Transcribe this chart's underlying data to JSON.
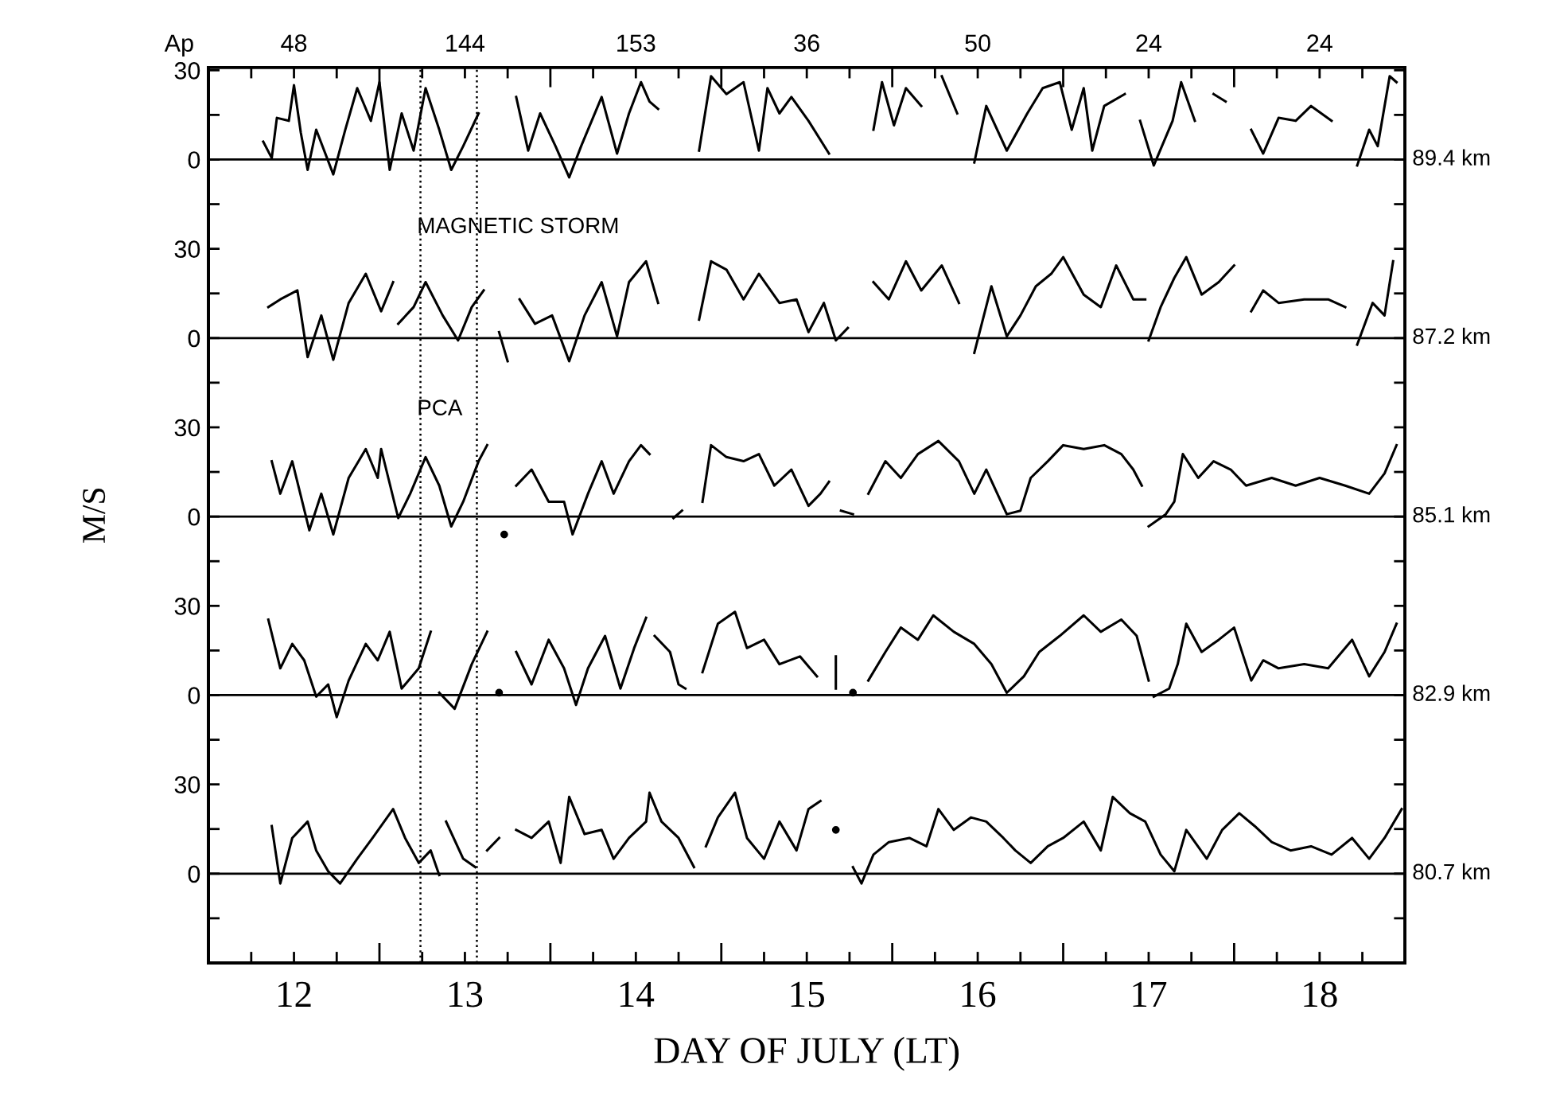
{
  "chart_data": [
    {
      "type": "line",
      "xlim": [
        12,
        19
      ],
      "ylim": [
        -270,
        31
      ],
      "tick_labels": "y",
      "line_style": "solid",
      "marker": "none",
      "yticks": [
        {
          "value": 30,
          "label": "30"
        },
        {
          "value": 15,
          "label": null
        },
        {
          "value": 0,
          "label": "0"
        },
        {
          "value": -15,
          "label": null
        }
      ],
      "series": [
        {
          "color": "#000000",
          "x": [
            12.32,
            12.37,
            12.4,
            12.47,
            12.5,
            12.54,
            12.58,
            12.63,
            12.73,
            12.8,
            12.87,
            12.95,
            13.0,
            13.06,
            13.13,
            13.2,
            13.27,
            13.35,
            13.42,
            13.49,
            13.58,
            13.7,
            13.8,
            13.87,
            13.94,
            14.03,
            14.11,
            14.18,
            14.3,
            14.39,
            14.46,
            14.53,
            14.58,
            14.63,
            14.75,
            14.87,
            14.94,
            15.03,
            15.13,
            15.22,
            15.27,
            15.34,
            15.41,
            15.51,
            15.63,
            15.75,
            15.89,
            15.94,
            16.01,
            16.08,
            16.17,
            16.23,
            16.29,
            16.38,
            16.43,
            16.48,
            16.55,
            16.67,
            16.79,
            16.88,
            16.98,
            17.05,
            17.12,
            17.17,
            17.24,
            17.36,
            17.4,
            17.45,
            17.53,
            17.64,
            17.69,
            17.77,
            17.82,
            17.88,
            17.95,
            18.02,
            18.1,
            18.17,
            18.26,
            18.36,
            18.45,
            18.57,
            18.65,
            18.72,
            18.79,
            18.84,
            18.91,
            18.95
          ],
          "values": [
            6,
            0.5,
            14,
            13,
            25,
            9,
            -3.5,
            10,
            -5,
            10,
            24,
            13,
            26,
            -3.5,
            15.5,
            3,
            24,
            10,
            -3.5,
            4.5,
            15.5,
            null,
            21,
            3,
            15.5,
            4.5,
            -6,
            4.5,
            21,
            2,
            15.5,
            26,
            19.5,
            17,
            null,
            3,
            28,
            22,
            26,
            3,
            24,
            15.5,
            21,
            13,
            2,
            null,
            10,
            26,
            11.5,
            24,
            18,
            null,
            28,
            15.5,
            null,
            -1,
            18,
            3,
            15.5,
            24,
            26,
            10,
            24,
            3,
            18,
            22,
            null,
            13,
            -2,
            13,
            26,
            13,
            null,
            22,
            19.5,
            null,
            10,
            2,
            14,
            13,
            18,
            13,
            null,
            -2,
            10,
            4.5,
            28,
            26
          ]
        }
      ],
      "ref_lines": [
        {
          "axis": "y",
          "value": 0,
          "label": "89.4 km",
          "color": "#000000",
          "line_style": "solid"
        },
        {
          "axis": "x",
          "value": 13.24,
          "color": "#000000",
          "line_style": "dotted"
        },
        {
          "axis": "x",
          "value": 13.57,
          "color": "#000000",
          "line_style": "dotted"
        }
      ],
      "annotations": [
        "Ap",
        "48",
        "144",
        "153",
        "36",
        "50",
        "24",
        "24",
        {
          "text": "MAGNETIC STORM",
          "x": 13.22,
          "y": -22.8
        }
      ]
    },
    {
      "type": "line",
      "xlim": [
        12,
        19
      ],
      "ylim": [
        -210,
        91
      ],
      "tick_labels": "y",
      "line_style": "solid",
      "marker": "none",
      "yticks": [
        {
          "value": 30,
          "label": "30"
        },
        {
          "value": 15,
          "label": null
        },
        {
          "value": 0,
          "label": "0"
        },
        {
          "value": -15,
          "label": null
        }
      ],
      "series": [
        {
          "color": "#000000",
          "x": [
            12.35,
            12.42,
            12.52,
            12.58,
            12.66,
            12.73,
            12.82,
            12.92,
            13.01,
            13.08,
            13.1,
            13.11,
            13.2,
            13.27,
            13.37,
            13.46,
            13.54,
            13.61,
            13.65,
            13.7,
            13.75,
            13.78,
            13.82,
            13.91,
            14.01,
            14.11,
            14.2,
            14.3,
            14.39,
            14.46,
            14.56,
            14.63,
            14.75,
            14.87,
            14.94,
            15.03,
            15.13,
            15.22,
            15.34,
            15.44,
            15.51,
            15.6,
            15.67,
            15.74,
            15.8,
            15.89,
            15.98,
            16.08,
            16.17,
            16.29,
            16.39,
            16.44,
            16.48,
            16.58,
            16.67,
            16.75,
            16.84,
            16.93,
            17.0,
            17.12,
            17.22,
            17.31,
            17.41,
            17.48,
            17.49,
            17.5,
            17.57,
            17.65,
            17.72,
            17.81,
            17.91,
            18.0,
            18.05,
            18.1,
            18.17,
            18.26,
            18.41,
            18.55,
            18.65,
            18.69,
            18.72,
            18.81,
            18.88,
            18.93
          ],
          "values": [
            10.4,
            13,
            16,
            -6.4,
            7.6,
            -7.3,
            11.8,
            21.6,
            9,
            18.8,
            null,
            4.8,
            10.4,
            18.8,
            7.6,
            -0.8,
            10.4,
            16,
            null,
            2,
            -7.8,
            null,
            13,
            4.8,
            7.6,
            -7.8,
            7.6,
            18.8,
            0.6,
            18.8,
            25.8,
            11.8,
            null,
            6.2,
            25.8,
            23,
            13,
            21.6,
            11.8,
            13,
            2,
            11.8,
            -0.8,
            3.4,
            null,
            18.8,
            13,
            25.8,
            16,
            24.4,
            11.8,
            null,
            -5,
            17.4,
            0.6,
            7.6,
            17.4,
            21.6,
            27.2,
            14.6,
            10.4,
            24.4,
            13,
            13,
            null,
            -0.8,
            10.4,
            20.2,
            27.2,
            14.6,
            18.8,
            24.4,
            null,
            9,
            16,
            11.8,
            13,
            13,
            10.4,
            null,
            -2.2,
            11.8,
            7.6,
            25.8
          ]
        }
      ],
      "ref_lines": [
        {
          "axis": "y",
          "value": 0,
          "label": "87.2 km",
          "color": "#000000",
          "line_style": "solid"
        }
      ],
      "annotations": [
        {
          "text": "PCA",
          "x": 13.22,
          "y": -24
        }
      ]
    },
    {
      "type": "line",
      "xlim": [
        12,
        19
      ],
      "ylim": [
        -150,
        151
      ],
      "tick_labels": "y",
      "line_style": "solid",
      "marker": "none",
      "ylabel": "M/S",
      "yticks": [
        {
          "value": 30,
          "label": "30"
        },
        {
          "value": 15,
          "label": null
        },
        {
          "value": 0,
          "label": "0"
        },
        {
          "value": -15,
          "label": null
        }
      ],
      "series": [
        {
          "color": "#000000",
          "x": [
            12.37,
            12.42,
            12.49,
            12.59,
            12.66,
            12.73,
            12.82,
            12.92,
            12.99,
            13.01,
            13.11,
            13.18,
            13.27,
            13.35,
            13.42,
            13.49,
            13.58,
            13.63,
            13.68,
            13.73,
            13.77,
            13.8,
            13.89,
            13.99,
            14.08,
            14.13,
            14.22,
            14.3,
            14.37,
            14.46,
            14.53,
            14.58,
            14.65,
            14.72,
            14.77,
            14.83,
            14.89,
            14.94,
            15.03,
            15.13,
            15.22,
            15.31,
            15.41,
            15.51,
            15.58,
            15.63,
            15.66,
            15.7,
            15.77,
            15.82,
            15.86,
            15.96,
            16.05,
            16.15,
            16.27,
            16.39,
            16.48,
            16.55,
            16.67,
            16.75,
            16.81,
            16.91,
            17.0,
            17.12,
            17.24,
            17.34,
            17.41,
            17.46,
            17.48,
            17.5,
            17.6,
            17.65,
            17.7,
            17.79,
            17.88,
            17.98,
            18.07,
            18.22,
            18.36,
            18.5,
            18.65,
            18.79,
            18.88,
            18.95
          ],
          "values": [
            18.6,
            7.7,
            18.6,
            -4.6,
            7.7,
            -6,
            13,
            22.7,
            13,
            22.7,
            -0.5,
            7.7,
            20,
            10.4,
            -3.3,
            5,
            18.6,
            24,
            null,
            -6,
            null,
            10.4,
            15.8,
            5,
            5,
            -6,
            7.7,
            18.6,
            7.7,
            18.6,
            24,
            21,
            null,
            -0.5,
            2,
            null,
            5,
            24,
            20,
            18.6,
            21,
            10.4,
            15.8,
            3.6,
            7.7,
            11.7,
            null,
            2,
            0.8,
            null,
            7.7,
            18.6,
            13,
            21,
            25.4,
            18.6,
            7.7,
            15.8,
            0.8,
            2,
            13,
            18.6,
            24,
            22.7,
            24,
            21,
            15.8,
            10.4,
            null,
            -3.3,
            0.8,
            5,
            21,
            13,
            18.6,
            15.8,
            10.4,
            13,
            10.4,
            13,
            10.4,
            7.7,
            14.5,
            24
          ]
        }
      ],
      "ref_lines": [
        {
          "axis": "y",
          "value": 0,
          "label": "85.1 km",
          "color": "#000000",
          "line_style": "solid"
        }
      ]
    },
    {
      "type": "line",
      "xlim": [
        12,
        19
      ],
      "ylim": [
        -90,
        211
      ],
      "tick_labels": "y",
      "line_style": "solid",
      "marker": "none",
      "yticks": [
        {
          "value": 30,
          "label": "30"
        },
        {
          "value": 15,
          "label": null
        },
        {
          "value": 0,
          "label": "0"
        },
        {
          "value": -15,
          "label": null
        }
      ],
      "series": [
        {
          "color": "#000000",
          "x": [
            12.35,
            12.42,
            12.49,
            12.56,
            12.63,
            12.7,
            12.75,
            12.82,
            12.92,
            12.99,
            13.06,
            13.13,
            13.23,
            13.3,
            13.33,
            13.35,
            13.44,
            13.54,
            13.63,
            13.67,
            13.7,
            13.75,
            13.8,
            13.89,
            13.99,
            14.08,
            14.15,
            14.22,
            14.32,
            14.41,
            14.49,
            14.56,
            14.59,
            14.61,
            14.7,
            14.75,
            14.79,
            14.84,
            14.89,
            14.98,
            15.08,
            15.15,
            15.25,
            15.34,
            15.46,
            15.56,
            15.62,
            15.67,
            15.67,
            15.72,
            15.77,
            15.82,
            15.86,
            15.96,
            16.05,
            16.15,
            16.24,
            16.36,
            16.48,
            16.58,
            16.67,
            16.77,
            16.86,
            16.98,
            17.12,
            17.22,
            17.34,
            17.43,
            17.5,
            17.52,
            17.53,
            17.62,
            17.67,
            17.72,
            17.81,
            17.91,
            18.0,
            18.1,
            18.17,
            18.26,
            18.41,
            18.55,
            18.69,
            18.79,
            18.88,
            18.95
          ],
          "values": [
            25.4,
            9,
            17.2,
            11.7,
            -0.5,
            3.6,
            -7.4,
            4.9,
            17.2,
            11.7,
            21.3,
            2.2,
            9,
            21.3,
            null,
            0.8,
            -4.6,
            10.4,
            21.3,
            null,
            0.8,
            null,
            14.5,
            3.6,
            18.6,
            9,
            -3.3,
            9,
            19.9,
            2.2,
            15.8,
            26,
            null,
            19.9,
            14.5,
            3.6,
            2.2,
            null,
            7.7,
            24,
            28,
            15.8,
            18.6,
            10.4,
            13,
            6.3,
            null,
            13,
            2.2,
            null,
            0.8,
            null,
            4.9,
            14.5,
            22.7,
            18.6,
            26.8,
            21.3,
            17.2,
            10.4,
            0.8,
            6.3,
            14.5,
            19.9,
            26.8,
            21.3,
            25.4,
            19.9,
            4.9,
            null,
            -0.5,
            2.2,
            10.4,
            24,
            14.5,
            18.6,
            22.7,
            4.9,
            11.7,
            9,
            10.4,
            9,
            18.6,
            6.3,
            14.5,
            24
          ]
        }
      ],
      "ref_lines": [
        {
          "axis": "y",
          "value": 0,
          "label": "82.9 km",
          "color": "#000000",
          "line_style": "solid"
        }
      ]
    },
    {
      "type": "line",
      "xlim": [
        12,
        19
      ],
      "ylim": [
        -30,
        271
      ],
      "line_style": "solid",
      "marker": "none",
      "xlabel": "DAY OF JULY (LT)",
      "xticks": [
        {
          "value": 12,
          "label": null
        },
        {
          "value": 12.25,
          "label": null
        },
        {
          "value": 12.5,
          "label": "12"
        },
        {
          "value": 12.75,
          "label": null
        },
        {
          "value": 13,
          "label": null
        },
        {
          "value": 13.25,
          "label": null
        },
        {
          "value": 13.5,
          "label": "13"
        },
        {
          "value": 13.75,
          "label": null
        },
        {
          "value": 14,
          "label": null
        },
        {
          "value": 14.25,
          "label": null
        },
        {
          "value": 14.5,
          "label": "14"
        },
        {
          "value": 14.75,
          "label": null
        },
        {
          "value": 15,
          "label": null
        },
        {
          "value": 15.25,
          "label": null
        },
        {
          "value": 15.5,
          "label": "15"
        },
        {
          "value": 15.75,
          "label": null
        },
        {
          "value": 16,
          "label": null
        },
        {
          "value": 16.25,
          "label": null
        },
        {
          "value": 16.5,
          "label": "16"
        },
        {
          "value": 16.75,
          "label": null
        },
        {
          "value": 17,
          "label": null
        },
        {
          "value": 17.25,
          "label": null
        },
        {
          "value": 17.5,
          "label": "17"
        },
        {
          "value": 17.75,
          "label": null
        },
        {
          "value": 18,
          "label": null
        },
        {
          "value": 18.25,
          "label": null
        },
        {
          "value": 18.5,
          "label": "18"
        },
        {
          "value": 18.75,
          "label": null
        },
        {
          "value": 19,
          "label": null
        }
      ],
      "yticks": [
        {
          "value": 30,
          "label": "30"
        },
        {
          "value": 15,
          "label": null
        },
        {
          "value": 0,
          "label": "0"
        },
        {
          "value": -15,
          "label": null
        }
      ],
      "series": [
        {
          "color": "#000000",
          "x": [
            12.37,
            12.42,
            12.49,
            12.58,
            12.63,
            12.7,
            12.77,
            12.87,
            12.96,
            13.08,
            13.15,
            13.23,
            13.3,
            13.35,
            13.37,
            13.39,
            13.49,
            13.56,
            13.6,
            13.63,
            13.7,
            13.75,
            13.8,
            13.89,
            13.99,
            14.06,
            14.11,
            14.2,
            14.3,
            14.37,
            14.46,
            14.56,
            14.58,
            14.65,
            14.75,
            14.84,
            14.88,
            14.91,
            14.98,
            15.08,
            15.15,
            15.25,
            15.34,
            15.44,
            15.51,
            15.58,
            15.62,
            15.67,
            15.72,
            15.77,
            15.82,
            15.89,
            15.98,
            16.1,
            16.2,
            16.27,
            16.36,
            16.46,
            16.55,
            16.65,
            16.72,
            16.81,
            16.91,
            17.0,
            17.12,
            17.22,
            17.29,
            17.39,
            17.48,
            17.57,
            17.65,
            17.72,
            17.84,
            17.93,
            18.03,
            18.12,
            18.22,
            18.33,
            18.45,
            18.57,
            18.69,
            18.79,
            18.88,
            18.98
          ],
          "values": [
            16,
            -3.3,
            12,
            17.5,
            7.8,
            0.8,
            -3.3,
            5,
            12,
            21.7,
            12,
            3.6,
            7.8,
            -0.5,
            null,
            17.5,
            5,
            2.2,
            null,
            7.8,
            12,
            null,
            14.7,
            12,
            17.5,
            3.6,
            25.8,
            13.3,
            14.7,
            5,
            12,
            17.5,
            27.2,
            17.5,
            12,
            2.2,
            null,
            9.2,
            18.9,
            27.2,
            12,
            5,
            17.5,
            7.8,
            21.7,
            24.4,
            null,
            14.7,
            null,
            2.2,
            -3.3,
            6.4,
            10.6,
            12,
            9.2,
            21.7,
            14.7,
            18.9,
            17.5,
            12,
            7.8,
            3.6,
            9.2,
            12,
            17.5,
            7.8,
            25.8,
            20.3,
            17.5,
            6.4,
            0.8,
            14.7,
            5,
            14.7,
            20.3,
            16,
            10.6,
            7.8,
            9.2,
            6.4,
            12,
            5,
            12,
            21.7
          ]
        }
      ],
      "ref_lines": [
        {
          "axis": "y",
          "value": 0,
          "label": "80.7 km",
          "color": "#000000",
          "line_style": "solid"
        }
      ]
    }
  ]
}
